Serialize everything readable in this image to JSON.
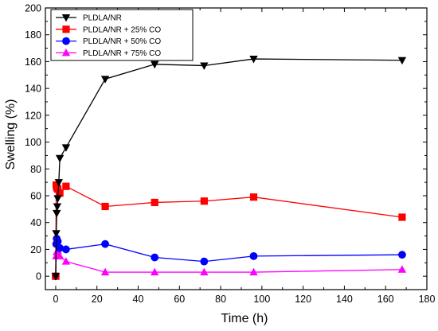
{
  "chart_data": {
    "type": "line",
    "xlabel": "Time (h)",
    "ylabel": "Swelling (%)",
    "xlim": [
      -5,
      180
    ],
    "ylim": [
      -10,
      200
    ],
    "x_ticks": [
      0,
      20,
      40,
      60,
      80,
      100,
      120,
      140,
      160,
      180
    ],
    "y_ticks": [
      0,
      20,
      40,
      60,
      80,
      100,
      120,
      140,
      160,
      180,
      200
    ],
    "x_tick_labels": [
      "0",
      "20",
      "40",
      "60",
      "80",
      "100",
      "120",
      "140",
      "160",
      "180"
    ],
    "y_tick_labels": [
      "0",
      "20",
      "40",
      "60",
      "80",
      "100",
      "120",
      "140",
      "160",
      "180",
      "200"
    ],
    "grid": false,
    "legend_position": "top-left",
    "series": [
      {
        "name": "PLDLA/NR",
        "color": "#000000",
        "marker": "triangle-down",
        "points": [
          [
            0,
            0
          ],
          [
            0.25,
            32
          ],
          [
            0.5,
            47
          ],
          [
            0.75,
            52
          ],
          [
            1,
            58
          ],
          [
            1.5,
            70
          ],
          [
            2,
            88
          ],
          [
            5,
            96
          ],
          [
            24,
            147
          ],
          [
            48,
            158
          ],
          [
            72,
            157
          ],
          [
            96,
            162
          ],
          [
            168,
            161
          ]
        ]
      },
      {
        "name": "PLDLA/NR + 25% CO",
        "color": "#ff0000",
        "marker": "square",
        "points": [
          [
            0,
            0
          ],
          [
            0.25,
            68
          ],
          [
            0.5,
            66
          ],
          [
            1,
            65
          ],
          [
            2,
            62
          ],
          [
            5,
            67
          ],
          [
            24,
            52
          ],
          [
            48,
            55
          ],
          [
            72,
            56
          ],
          [
            96,
            59
          ],
          [
            168,
            44
          ]
        ]
      },
      {
        "name": "PLDLA/NR + 50% CO",
        "color": "#0000ff",
        "marker": "circle",
        "points": [
          [
            0,
            0
          ],
          [
            0.25,
            24
          ],
          [
            0.5,
            28
          ],
          [
            1,
            26
          ],
          [
            2,
            21
          ],
          [
            5,
            20
          ],
          [
            24,
            24
          ],
          [
            48,
            14
          ],
          [
            72,
            11
          ],
          [
            96,
            15
          ],
          [
            168,
            16
          ]
        ]
      },
      {
        "name": "PLDLA/NR + 75% CO",
        "color": "#ff00ff",
        "marker": "triangle-up",
        "points": [
          [
            0,
            0
          ],
          [
            0.25,
            15
          ],
          [
            0.5,
            18
          ],
          [
            1,
            19
          ],
          [
            2,
            15
          ],
          [
            5,
            11
          ],
          [
            24,
            3
          ],
          [
            48,
            3
          ],
          [
            72,
            3
          ],
          [
            96,
            3
          ],
          [
            168,
            5
          ]
        ]
      }
    ]
  }
}
